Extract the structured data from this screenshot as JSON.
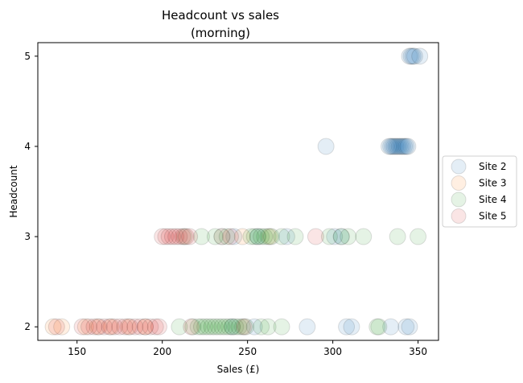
{
  "chart_data": {
    "type": "scatter",
    "title": "Headcount vs sales\n(morning)",
    "xlabel": "Sales (£)",
    "ylabel": "Headcount",
    "xlim": [
      127,
      362
    ],
    "ylim": [
      1.85,
      5.15
    ],
    "xticks": [
      150,
      200,
      250,
      300,
      350
    ],
    "yticks": [
      2,
      3,
      4,
      5
    ],
    "grid": false,
    "legend_position": "right-outside",
    "series": [
      {
        "name": "Site 2",
        "color": "#1f77b4",
        "points": [
          [
            345,
            5
          ],
          [
            346,
            5
          ],
          [
            347,
            5
          ],
          [
            348,
            5
          ],
          [
            351,
            5
          ],
          [
            296,
            4
          ],
          [
            333,
            4
          ],
          [
            334,
            4
          ],
          [
            335,
            4
          ],
          [
            336,
            4
          ],
          [
            337,
            4
          ],
          [
            338,
            4
          ],
          [
            339,
            4
          ],
          [
            340,
            4
          ],
          [
            341,
            4
          ],
          [
            342,
            4
          ],
          [
            343,
            4
          ],
          [
            344,
            4
          ],
          [
            235,
            3
          ],
          [
            242,
            3
          ],
          [
            256,
            3
          ],
          [
            273,
            3
          ],
          [
            301,
            3
          ],
          [
            305,
            3
          ],
          [
            241,
            2
          ],
          [
            254,
            2
          ],
          [
            285,
            2
          ],
          [
            308,
            2
          ],
          [
            311,
            2
          ],
          [
            334,
            2
          ],
          [
            343,
            2
          ],
          [
            345,
            2
          ]
        ]
      },
      {
        "name": "Site 3",
        "color": "#ff7f0e",
        "points": [
          [
            136,
            2
          ],
          [
            141,
            2
          ],
          [
            155,
            2
          ],
          [
            162,
            2
          ],
          [
            170,
            2
          ],
          [
            180,
            2
          ],
          [
            190,
            2
          ],
          [
            235,
            3
          ],
          [
            247,
            3
          ],
          [
            263,
            3
          ]
        ]
      },
      {
        "name": "Site 4",
        "color": "#2ca02c",
        "points": [
          [
            210,
            2
          ],
          [
            218,
            2
          ],
          [
            221,
            2
          ],
          [
            223,
            2
          ],
          [
            225,
            2
          ],
          [
            227,
            2
          ],
          [
            229,
            2
          ],
          [
            231,
            2
          ],
          [
            233,
            2
          ],
          [
            235,
            2
          ],
          [
            237,
            2
          ],
          [
            239,
            2
          ],
          [
            241,
            2
          ],
          [
            243,
            2
          ],
          [
            245,
            2
          ],
          [
            247,
            2
          ],
          [
            249,
            2
          ],
          [
            258,
            2
          ],
          [
            262,
            2
          ],
          [
            270,
            2
          ],
          [
            326,
            2
          ],
          [
            327,
            2
          ],
          [
            213,
            3
          ],
          [
            223,
            3
          ],
          [
            231,
            3
          ],
          [
            238,
            3
          ],
          [
            252,
            3
          ],
          [
            254,
            3
          ],
          [
            256,
            3
          ],
          [
            258,
            3
          ],
          [
            260,
            3
          ],
          [
            262,
            3
          ],
          [
            264,
            3
          ],
          [
            270,
            3
          ],
          [
            278,
            3
          ],
          [
            298,
            3
          ],
          [
            305,
            3
          ],
          [
            309,
            3
          ],
          [
            318,
            3
          ],
          [
            338,
            3
          ],
          [
            350,
            3
          ]
        ]
      },
      {
        "name": "Site 5",
        "color": "#d62728",
        "points": [
          [
            138,
            2
          ],
          [
            153,
            2
          ],
          [
            157,
            2
          ],
          [
            160,
            2
          ],
          [
            163,
            2
          ],
          [
            166,
            2
          ],
          [
            169,
            2
          ],
          [
            172,
            2
          ],
          [
            175,
            2
          ],
          [
            178,
            2
          ],
          [
            181,
            2
          ],
          [
            184,
            2
          ],
          [
            187,
            2
          ],
          [
            190,
            2
          ],
          [
            193,
            2
          ],
          [
            196,
            2
          ],
          [
            198,
            2
          ],
          [
            217,
            2
          ],
          [
            248,
            2
          ],
          [
            200,
            3
          ],
          [
            202,
            3
          ],
          [
            204,
            3
          ],
          [
            206,
            3
          ],
          [
            208,
            3
          ],
          [
            210,
            3
          ],
          [
            212,
            3
          ],
          [
            214,
            3
          ],
          [
            216,
            3
          ],
          [
            240,
            3
          ],
          [
            290,
            3
          ]
        ]
      }
    ]
  }
}
